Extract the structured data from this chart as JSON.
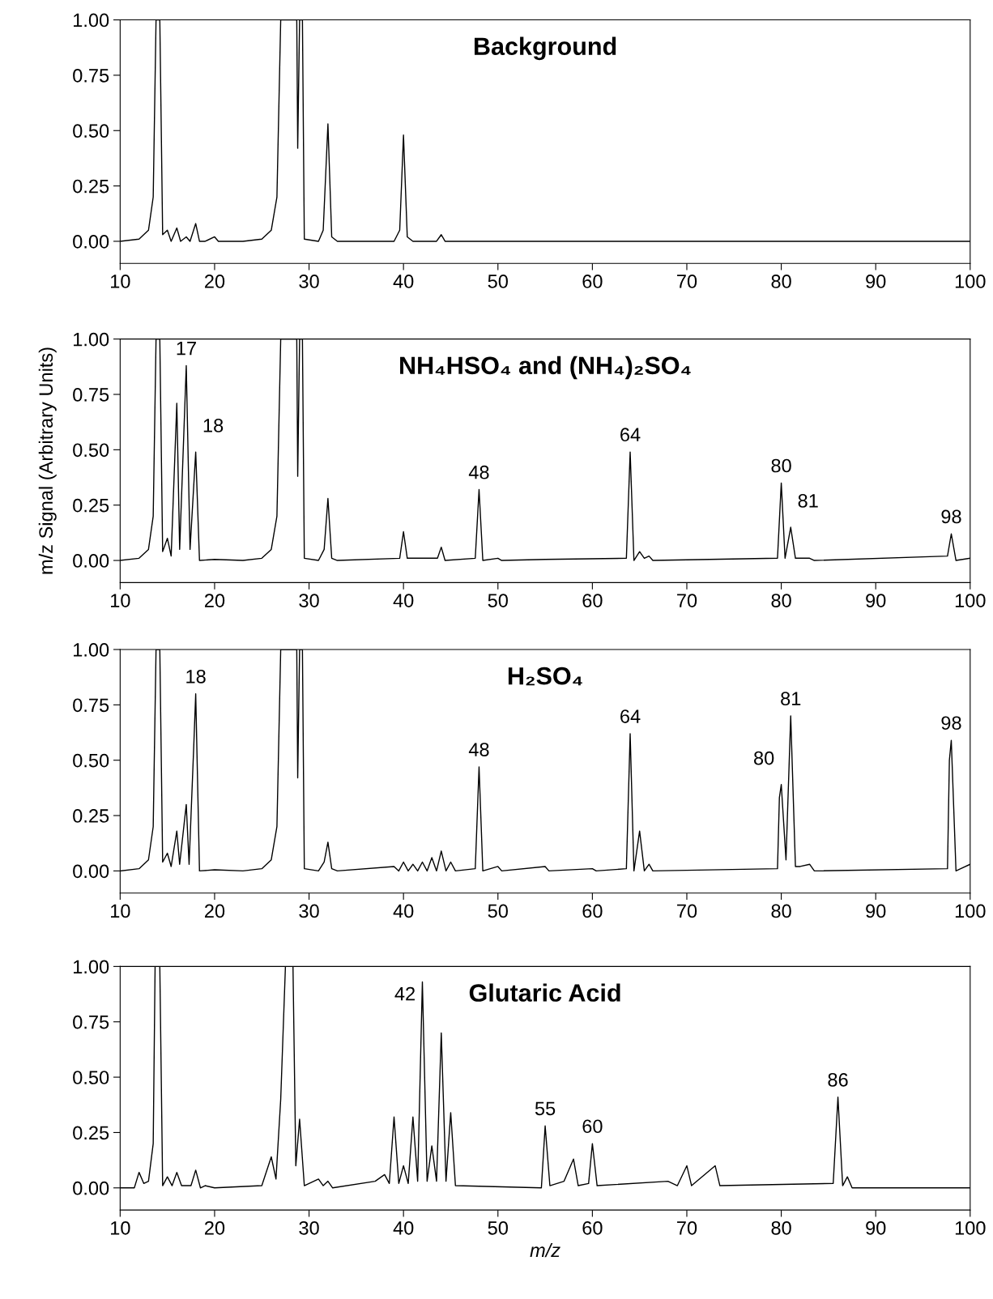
{
  "chart_data": [
    {
      "type": "line",
      "title": "Background",
      "xlim": [
        10,
        100
      ],
      "ylim": [
        -0.1,
        1.0
      ],
      "xticks": [
        10,
        20,
        30,
        40,
        50,
        60,
        70,
        80,
        90,
        100
      ],
      "yticks": [
        {
          "value": 0,
          "label": "0.00"
        },
        {
          "value": 0.25,
          "label": "0.25"
        },
        {
          "value": 0.5,
          "label": "0.50"
        },
        {
          "value": 0.75,
          "label": "0.75"
        },
        {
          "value": 1.0,
          "label": "1.00"
        }
      ],
      "grid": false,
      "legend": false,
      "series": [
        {
          "color": "#000000",
          "x": [
            10,
            12,
            13,
            13.5,
            13.8,
            14.2,
            14.5,
            15,
            15.4,
            16,
            16.4,
            17,
            17.4,
            18,
            18.4,
            19,
            20,
            20.4,
            23,
            25,
            26,
            26.6,
            27,
            28.7,
            28.8,
            29,
            29.3,
            29.5,
            31,
            31.5,
            32,
            32.4,
            33,
            39,
            39.6,
            40,
            40.4,
            41,
            43.5,
            44,
            44.4,
            100
          ],
          "values": [
            0,
            0.01,
            0.05,
            0.2,
            1.0,
            1.0,
            0.03,
            0.05,
            0.0,
            0.06,
            0.0,
            0.02,
            0.0,
            0.08,
            0.0,
            0,
            0.02,
            0,
            0,
            0.01,
            0.05,
            0.2,
            1.0,
            1.0,
            0.42,
            1.0,
            1.0,
            0.01,
            0.0,
            0.05,
            0.53,
            0.02,
            0,
            0,
            0.05,
            0.48,
            0.02,
            0,
            0,
            0.03,
            0,
            0
          ]
        }
      ]
    },
    {
      "type": "line",
      "title": "NH₄HSO₄ and (NH₄)₂SO₄",
      "ylabel": "m/z Signal (Arbitrary Units)",
      "xlim": [
        10,
        100
      ],
      "ylim": [
        -0.1,
        1.0
      ],
      "xticks": [
        10,
        20,
        30,
        40,
        50,
        60,
        70,
        80,
        90,
        100
      ],
      "yticks": [
        {
          "value": 0,
          "label": "0.00"
        },
        {
          "value": 0.25,
          "label": "0.25"
        },
        {
          "value": 0.5,
          "label": "0.50"
        },
        {
          "value": 0.75,
          "label": "0.75"
        },
        {
          "value": 1.0,
          "label": "1.00"
        }
      ],
      "grid": false,
      "legend": false,
      "annotations": [
        {
          "text": "17",
          "x": 17,
          "y": 0.88
        },
        {
          "text": "18",
          "x": 18,
          "y": 0.49
        },
        {
          "text": "48",
          "x": 48,
          "y": 0.32
        },
        {
          "text": "64",
          "x": 64,
          "y": 0.49
        },
        {
          "text": "80",
          "x": 80,
          "y": 0.35
        },
        {
          "text": "81",
          "x": 81,
          "y": 0.15
        },
        {
          "text": "98",
          "x": 98,
          "y": 0.12
        }
      ],
      "series": [
        {
          "color": "#000000",
          "x": [
            10,
            12,
            13,
            13.5,
            13.8,
            14.2,
            14.5,
            15,
            15.4,
            16,
            16.3,
            17,
            17.4,
            18,
            18.4,
            20,
            23,
            25,
            26,
            26.6,
            27,
            28.7,
            28.8,
            29,
            29.3,
            29.5,
            31,
            31.6,
            32,
            32.4,
            33,
            39.6,
            40,
            40.4,
            43.6,
            44,
            44.4,
            47.6,
            48,
            48.4,
            50,
            50.4,
            55,
            63.6,
            64,
            64.4,
            65,
            65.5,
            66,
            66.4,
            79.6,
            80,
            80.4,
            81,
            81.5,
            83,
            83.5,
            97.6,
            98,
            98.5,
            100
          ],
          "values": [
            0,
            0.01,
            0.05,
            0.2,
            1.0,
            1.0,
            0.04,
            0.1,
            0.02,
            0.71,
            0.05,
            0.88,
            0.05,
            0.49,
            0.0,
            0.005,
            0,
            0.01,
            0.05,
            0.2,
            1.0,
            1.0,
            0.38,
            1.0,
            1.0,
            0.01,
            0.0,
            0.05,
            0.28,
            0.01,
            0,
            0.01,
            0.13,
            0.01,
            0.01,
            0.06,
            0,
            0.01,
            0.32,
            0,
            0.01,
            0,
            0.005,
            0.01,
            0.49,
            0.0,
            0.04,
            0.01,
            0.02,
            0,
            0.01,
            0.35,
            0.01,
            0.15,
            0.01,
            0.01,
            0,
            0.02,
            0.12,
            0.0,
            0.01
          ]
        }
      ]
    },
    {
      "type": "line",
      "title": "H₂SO₄",
      "xlim": [
        10,
        100
      ],
      "ylim": [
        -0.1,
        1.0
      ],
      "xticks": [
        10,
        20,
        30,
        40,
        50,
        60,
        70,
        80,
        90,
        100
      ],
      "yticks": [
        {
          "value": 0,
          "label": "0.00"
        },
        {
          "value": 0.25,
          "label": "0.25"
        },
        {
          "value": 0.5,
          "label": "0.50"
        },
        {
          "value": 0.75,
          "label": "0.75"
        },
        {
          "value": 1.0,
          "label": "1.00"
        }
      ],
      "grid": false,
      "legend": false,
      "annotations": [
        {
          "text": "18",
          "x": 18,
          "y": 0.8
        },
        {
          "text": "48",
          "x": 48,
          "y": 0.47
        },
        {
          "text": "64",
          "x": 64,
          "y": 0.62
        },
        {
          "text": "80",
          "x": 80,
          "y": 0.39
        },
        {
          "text": "81",
          "x": 81,
          "y": 0.7
        },
        {
          "text": "98",
          "x": 98,
          "y": 0.59
        }
      ],
      "series": [
        {
          "color": "#000000",
          "x": [
            10,
            12,
            13,
            13.5,
            13.8,
            14.2,
            14.5,
            15,
            15.4,
            16,
            16.3,
            17,
            17.3,
            17.8,
            18,
            18.4,
            20,
            23,
            25,
            26,
            26.6,
            27,
            28.7,
            28.8,
            29,
            29.3,
            29.5,
            31,
            31.6,
            32,
            32.4,
            33,
            39,
            39.5,
            40,
            40.5,
            41,
            41.5,
            42,
            42.5,
            43,
            43.5,
            44,
            44.5,
            45,
            45.5,
            47.6,
            48,
            48.4,
            50,
            50.4,
            55,
            55.4,
            60,
            60.4,
            63.6,
            64,
            64.4,
            65,
            65.5,
            66,
            66.4,
            79.6,
            79.8,
            80,
            80.5,
            81,
            81.5,
            82,
            83,
            83.5,
            97.6,
            97.8,
            98,
            98.5,
            99,
            100
          ],
          "values": [
            0,
            0.01,
            0.05,
            0.2,
            1.0,
            1.0,
            0.04,
            0.08,
            0.02,
            0.18,
            0.03,
            0.3,
            0.03,
            0.57,
            0.8,
            0.0,
            0.005,
            0,
            0.01,
            0.05,
            0.2,
            1.0,
            1.0,
            0.42,
            1.0,
            1.0,
            0.01,
            0.0,
            0.04,
            0.13,
            0.01,
            0,
            0.02,
            0.0,
            0.04,
            0.0,
            0.03,
            0.0,
            0.04,
            0.0,
            0.06,
            0.0,
            0.09,
            0.0,
            0.04,
            0.0,
            0.01,
            0.47,
            0.0,
            0.02,
            0,
            0.02,
            0,
            0.01,
            0,
            0.01,
            0.62,
            0.0,
            0.18,
            0.0,
            0.03,
            0,
            0.01,
            0.33,
            0.39,
            0.05,
            0.7,
            0.02,
            0.02,
            0.03,
            0,
            0.01,
            0.5,
            0.59,
            0.0,
            0.01,
            0.03
          ]
        }
      ]
    },
    {
      "type": "line",
      "title": "Glutaric Acid",
      "xlabel": "m/z",
      "xlim": [
        10,
        100
      ],
      "ylim": [
        -0.1,
        1.0
      ],
      "xticks": [
        10,
        20,
        30,
        40,
        50,
        60,
        70,
        80,
        90,
        100
      ],
      "yticks": [
        {
          "value": 0,
          "label": "0.00"
        },
        {
          "value": 0.25,
          "label": "0.25"
        },
        {
          "value": 0.5,
          "label": "0.50"
        },
        {
          "value": 0.75,
          "label": "0.75"
        },
        {
          "value": 1.0,
          "label": "1.00"
        }
      ],
      "grid": false,
      "legend": false,
      "annotations": [
        {
          "text": "42",
          "x": 42,
          "y": 0.93
        },
        {
          "text": "55",
          "x": 55,
          "y": 0.28
        },
        {
          "text": "60",
          "x": 60,
          "y": 0.2
        },
        {
          "text": "86",
          "x": 86,
          "y": 0.41
        }
      ],
      "series": [
        {
          "color": "#000000",
          "x": [
            10,
            11.5,
            12,
            12.5,
            13,
            13.5,
            13.7,
            14.2,
            14.5,
            15,
            15.5,
            16,
            16.5,
            17,
            17.5,
            18,
            18.5,
            19,
            20,
            25,
            26,
            26.5,
            27,
            27.5,
            28.3,
            28.6,
            29,
            29.5,
            31,
            31.5,
            32,
            32.5,
            37,
            38,
            38.5,
            39,
            39.5,
            40,
            40.5,
            41,
            41.5,
            42,
            42.5,
            43,
            43.5,
            44,
            44.5,
            45,
            45.5,
            54.6,
            55,
            55.5,
            57,
            58,
            58.5,
            59.6,
            60,
            60.5,
            68,
            69,
            70,
            70.5,
            73,
            73.5,
            85.5,
            86,
            86.5,
            87,
            87.5,
            100
          ],
          "values": [
            0,
            0.0,
            0.07,
            0.02,
            0.03,
            0.2,
            1.0,
            1.0,
            0.01,
            0.05,
            0.01,
            0.07,
            0.01,
            0.01,
            0.01,
            0.08,
            0.0,
            0.01,
            0.0,
            0.01,
            0.14,
            0.04,
            0.4,
            1.0,
            1.0,
            0.1,
            0.31,
            0.01,
            0.04,
            0.01,
            0.03,
            0.0,
            0.03,
            0.06,
            0.02,
            0.32,
            0.02,
            0.1,
            0.02,
            0.32,
            0.03,
            0.93,
            0.03,
            0.19,
            0.03,
            0.7,
            0.03,
            0.34,
            0.01,
            0.0,
            0.28,
            0.01,
            0.03,
            0.13,
            0.01,
            0.02,
            0.2,
            0.01,
            0.03,
            0.01,
            0.1,
            0.01,
            0.1,
            0.01,
            0.02,
            0.41,
            0.01,
            0.05,
            0.0,
            0
          ]
        }
      ]
    }
  ]
}
